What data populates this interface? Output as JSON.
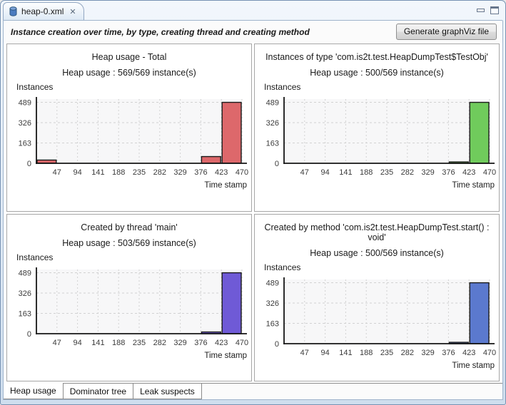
{
  "window": {
    "tab_title": "heap-0.xml",
    "close_glyph": "✕",
    "icons": {
      "tab_file": "heap-dump-cylinder-icon",
      "minimize": "minimize-icon",
      "maximize": "maximize-icon"
    }
  },
  "header": {
    "title": "Instance creation over time, by type, creating thread and creating method",
    "button_label": "Generate graphViz file"
  },
  "bottom_tabs": [
    {
      "label": "Heap usage",
      "active": true
    },
    {
      "label": "Dominator tree",
      "active": false
    },
    {
      "label": "Leak suspects",
      "active": false
    }
  ],
  "chart_data": [
    {
      "type": "bar",
      "title": "Heap usage - Total",
      "subtitle": "Heap usage : 569/569 instance(s)",
      "ylabel": "Instances",
      "xlabel": "Time stamp",
      "categories": [
        "47",
        "94",
        "141",
        "188",
        "235",
        "282",
        "329",
        "376",
        "423",
        "470"
      ],
      "values": [
        26,
        0,
        0,
        0,
        0,
        0,
        0,
        0,
        54,
        489
      ],
      "yticks": [
        0,
        163,
        326,
        489
      ],
      "ylim": [
        0,
        515
      ],
      "bar_color": "#dd686b",
      "grid": true
    },
    {
      "type": "bar",
      "title": "Instances of type 'com.is2t.test.HeapDumpTest$TestObj'",
      "subtitle": "Heap usage : 500/569 instance(s)",
      "ylabel": "Instances",
      "xlabel": "Time stamp",
      "categories": [
        "47",
        "94",
        "141",
        "188",
        "235",
        "282",
        "329",
        "376",
        "423",
        "470"
      ],
      "values": [
        0,
        0,
        0,
        0,
        0,
        0,
        0,
        0,
        11,
        489
      ],
      "yticks": [
        0,
        163,
        326,
        489
      ],
      "ylim": [
        0,
        515
      ],
      "bar_color": "#70cb5c",
      "grid": true
    },
    {
      "type": "bar",
      "title": "Created by thread 'main'",
      "subtitle": "Heap usage : 503/569 instance(s)",
      "ylabel": "Instances",
      "xlabel": "Time stamp",
      "categories": [
        "47",
        "94",
        "141",
        "188",
        "235",
        "282",
        "329",
        "376",
        "423",
        "470"
      ],
      "values": [
        0,
        0,
        0,
        0,
        0,
        0,
        0,
        0,
        14,
        489
      ],
      "yticks": [
        0,
        163,
        326,
        489
      ],
      "ylim": [
        0,
        515
      ],
      "bar_color": "#6f5ad6",
      "grid": true
    },
    {
      "type": "bar",
      "title": "Created by method 'com.is2t.test.HeapDumpTest.start() : void'",
      "subtitle": "Heap usage : 500/569 instance(s)",
      "ylabel": "Instances",
      "xlabel": "Time stamp",
      "categories": [
        "47",
        "94",
        "141",
        "188",
        "235",
        "282",
        "329",
        "376",
        "423",
        "470"
      ],
      "values": [
        0,
        0,
        0,
        0,
        0,
        0,
        0,
        0,
        11,
        489
      ],
      "yticks": [
        0,
        163,
        326,
        489
      ],
      "ylim": [
        0,
        515
      ],
      "bar_color": "#5b79ce",
      "grid": true
    }
  ]
}
